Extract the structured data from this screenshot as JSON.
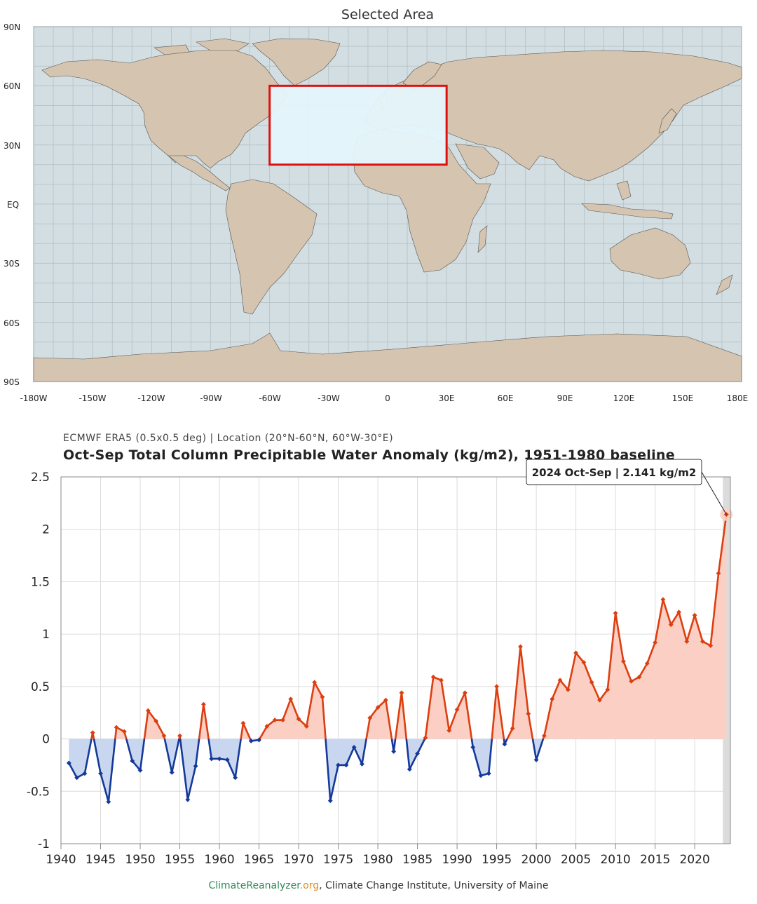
{
  "map": {
    "title": "Selected Area",
    "lat_labels": [
      "90N",
      "60N",
      "30N",
      "EQ",
      "30S",
      "60S",
      "90S"
    ],
    "lon_labels": [
      "-180W",
      "-150W",
      "-120W",
      "-90W",
      "-60W",
      "-30W",
      "0",
      "30E",
      "60E",
      "90E",
      "120E",
      "150E",
      "180E"
    ],
    "selection": {
      "lat_min": 20,
      "lat_max": 60,
      "lon_min": -60,
      "lon_max": 30
    },
    "colors": {
      "ocean": "#d2dee2",
      "land": "#d5c4b0",
      "selection_fill": "#e4f6fb",
      "selection_border": "#e01010"
    }
  },
  "chart_data": {
    "type": "area",
    "subtitle": "ECMWF ERA5 (0.5x0.5 deg) | Location (20°N-60°N, 60°W-30°E)",
    "title": "Oct-Sep Total Column Precipitable Water Anomaly (kg/m2), 1951-1980 baseline",
    "xlim": [
      1940,
      2024.5
    ],
    "ylim": [
      -1,
      2.5
    ],
    "y_ticks": [
      "2.5",
      "2",
      "1.5",
      "1",
      "0.5",
      "0",
      "-0.5",
      "-1"
    ],
    "x_ticks": [
      "1940",
      "1945",
      "1950",
      "1955",
      "1960",
      "1965",
      "1970",
      "1975",
      "1980",
      "1985",
      "1990",
      "1995",
      "2000",
      "2005",
      "2010",
      "2015",
      "2020"
    ],
    "x": [
      1941,
      1942,
      1943,
      1944,
      1945,
      1946,
      1947,
      1948,
      1949,
      1950,
      1951,
      1952,
      1953,
      1954,
      1955,
      1956,
      1957,
      1958,
      1959,
      1960,
      1961,
      1962,
      1963,
      1964,
      1965,
      1966,
      1967,
      1968,
      1969,
      1970,
      1971,
      1972,
      1973,
      1974,
      1975,
      1976,
      1977,
      1978,
      1979,
      1980,
      1981,
      1982,
      1983,
      1984,
      1985,
      1986,
      1987,
      1988,
      1989,
      1990,
      1991,
      1992,
      1993,
      1994,
      1995,
      1996,
      1997,
      1998,
      1999,
      2000,
      2001,
      2002,
      2003,
      2004,
      2005,
      2006,
      2007,
      2008,
      2009,
      2010,
      2011,
      2012,
      2013,
      2014,
      2015,
      2016,
      2017,
      2018,
      2019,
      2020,
      2021,
      2022,
      2023,
      2024
    ],
    "y": [
      -0.23,
      -0.37,
      -0.33,
      0.06,
      -0.33,
      -0.6,
      0.11,
      0.07,
      -0.21,
      -0.3,
      0.27,
      0.17,
      0.03,
      -0.32,
      0.03,
      -0.58,
      -0.26,
      0.33,
      -0.19,
      -0.19,
      -0.2,
      -0.37,
      0.15,
      -0.02,
      -0.01,
      0.12,
      0.18,
      0.18,
      0.38,
      0.19,
      0.12,
      0.54,
      0.4,
      -0.59,
      -0.25,
      -0.25,
      -0.08,
      -0.24,
      0.2,
      0.3,
      0.37,
      -0.12,
      0.44,
      -0.29,
      -0.14,
      0.01,
      0.59,
      0.56,
      0.08,
      0.28,
      0.44,
      -0.08,
      -0.35,
      -0.33,
      0.5,
      -0.05,
      0.1,
      0.88,
      0.24,
      -0.2,
      0.03,
      0.38,
      0.56,
      0.47,
      0.82,
      0.73,
      0.54,
      0.37,
      0.47,
      1.2,
      0.74,
      0.55,
      0.59,
      0.72,
      0.92,
      1.33,
      1.09,
      1.21,
      0.93,
      1.18,
      0.93,
      0.89,
      1.58,
      2.141
    ],
    "colors": {
      "positive_line": "#dd3e10",
      "positive_fill": "#fbcfc3",
      "negative_line": "#15399a",
      "negative_fill": "#c9d6ef",
      "highlight_band": "#dcdcdc"
    },
    "tooltip": "2024 Oct-Sep | 2.141 kg/m2",
    "grid": true,
    "legend": "none"
  },
  "credit": {
    "site_name": "ClimateReanalyzer",
    "site_tld": ".org",
    "rest": ", Climate Change Institute, University of Maine"
  }
}
